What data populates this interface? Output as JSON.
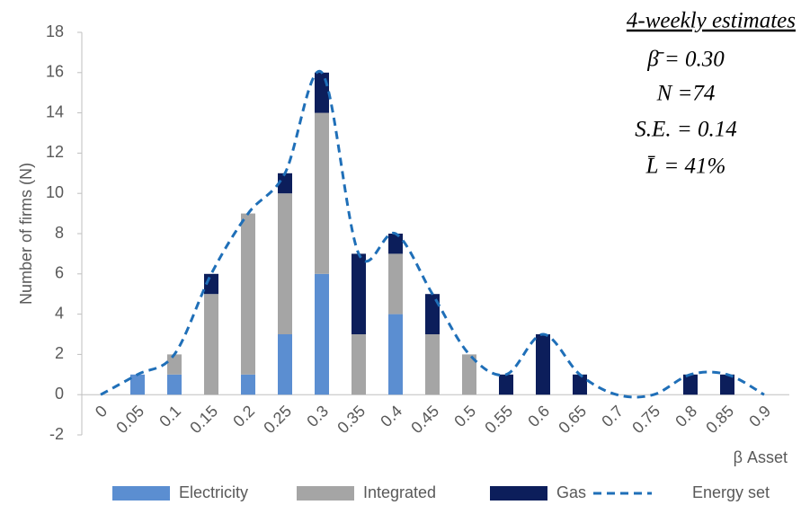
{
  "chart_data": {
    "type": "bar",
    "stacked": true,
    "x_label": "β Asset",
    "y_label": "Number of firms (N)",
    "categories": [
      "0",
      "0.05",
      "0.1",
      "0.15",
      "0.2",
      "0.25",
      "0.3",
      "0.35",
      "0.4",
      "0.45",
      "0.5",
      "0.55",
      "0.6",
      "0.65",
      "0.7",
      "0.75",
      "0.8",
      "0.85",
      "0.9"
    ],
    "series": [
      {
        "name": "Electricity",
        "color": "#5b8ed1",
        "values": [
          0,
          1,
          1,
          0,
          1,
          3,
          6,
          0,
          4,
          0,
          0,
          0,
          0,
          0,
          0,
          0,
          0,
          0,
          0
        ]
      },
      {
        "name": "Integrated",
        "color": "#a5a5a5",
        "values": [
          0,
          0,
          1,
          5,
          8,
          7,
          8,
          3,
          3,
          3,
          2,
          0,
          0,
          0,
          0,
          0,
          0,
          0,
          0
        ]
      },
      {
        "name": "Gas",
        "color": "#0c1e5b",
        "values": [
          0,
          0,
          0,
          1,
          0,
          1,
          2,
          4,
          1,
          2,
          0,
          1,
          3,
          1,
          0,
          0,
          1,
          1,
          0
        ]
      },
      {
        "name": "Energy set",
        "color": "#1f6fb8",
        "type": "line",
        "style": "dashed",
        "values": [
          0,
          1,
          2,
          6,
          9,
          11,
          16,
          7,
          8,
          5,
          2,
          1,
          3,
          1,
          0,
          0,
          1,
          1,
          0
        ]
      }
    ],
    "ylim": [
      -2,
      18
    ],
    "yticks": [
      -2,
      0,
      2,
      4,
      6,
      8,
      10,
      12,
      14,
      16,
      18
    ],
    "legend": "bottom",
    "annotations": [
      "4-weekly estimates",
      "β̄ = 0.30",
      "N =74",
      "S.E. = 0.14",
      "L̄ = 41%"
    ]
  }
}
